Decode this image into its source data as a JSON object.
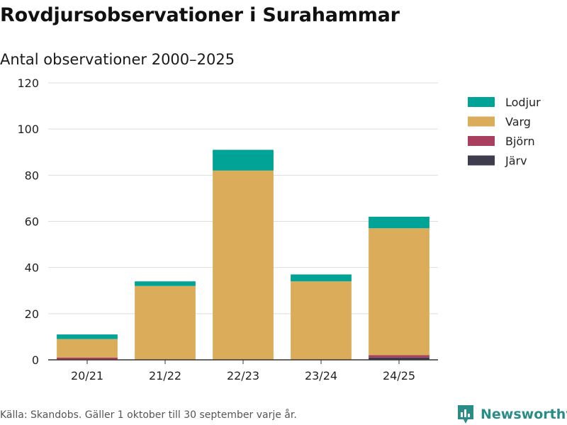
{
  "title": "Rovdjursobservationer i Surahammar",
  "subtitle": "Antal observationer 2000–2025",
  "footer": "Källa: Skandobs. Gäller 1 oktober till 30 september varje år.",
  "brand": "Newsworthy",
  "chart_data": {
    "type": "bar",
    "stacked": true,
    "categories": [
      "20/21",
      "21/22",
      "22/23",
      "23/24",
      "24/25"
    ],
    "ylim": [
      0,
      120
    ],
    "yticks": [
      0,
      20,
      40,
      60,
      80,
      100,
      120
    ],
    "grid": true,
    "legend_position": "right",
    "series": [
      {
        "name": "Järv",
        "color": "#3d3d4e",
        "values": [
          0,
          0,
          0,
          0,
          1
        ]
      },
      {
        "name": "Björn",
        "color": "#a83f5e",
        "values": [
          1,
          0,
          0,
          0,
          1
        ]
      },
      {
        "name": "Varg",
        "color": "#dbad5a",
        "values": [
          8,
          32,
          82,
          34,
          55
        ]
      },
      {
        "name": "Lodjur",
        "color": "#00a396",
        "values": [
          2,
          2,
          9,
          3,
          5
        ]
      }
    ],
    "legend_order": [
      "Lodjur",
      "Varg",
      "Björn",
      "Järv"
    ]
  }
}
